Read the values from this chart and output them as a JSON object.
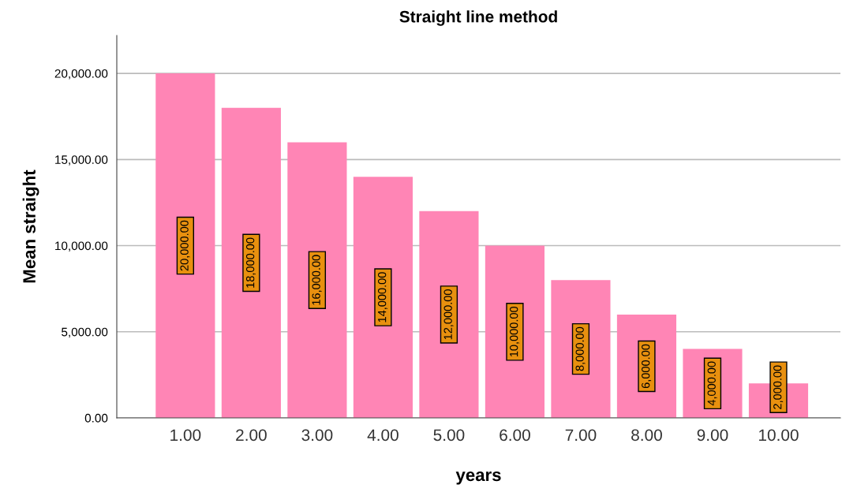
{
  "chart_data": {
    "type": "bar",
    "title": "Straight line method",
    "xlabel": "years",
    "ylabel": "Mean straight",
    "categories": [
      "1.00",
      "2.00",
      "3.00",
      "4.00",
      "5.00",
      "6.00",
      "7.00",
      "8.00",
      "9.00",
      "10.00"
    ],
    "values": [
      20000,
      18000,
      16000,
      14000,
      12000,
      10000,
      8000,
      6000,
      4000,
      2000
    ],
    "value_labels": [
      "20,000.00",
      "18,000.00",
      "16,000.00",
      "14,000.00",
      "12,000.00",
      "10,000.00",
      "8,000.00",
      "6,000.00",
      "4,000.00",
      "2,000.00"
    ],
    "color": "#ff85b5",
    "ylim": [
      0,
      22200
    ],
    "yticks": [
      {
        "value": 0,
        "label": "0.00"
      },
      {
        "value": 5000,
        "label": "5,000.00"
      },
      {
        "value": 10000,
        "label": "10,000.00"
      },
      {
        "value": 15000,
        "label": "15,000.00"
      },
      {
        "value": 20000,
        "label": "20,000.00"
      }
    ],
    "grid": "y",
    "legend": false
  }
}
